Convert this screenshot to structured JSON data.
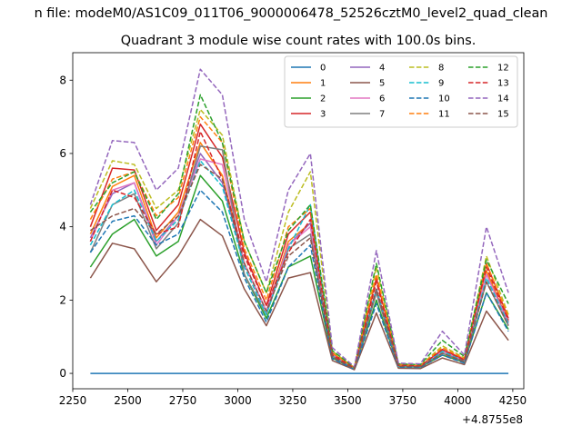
{
  "suptitle": "n file: modeM0/AS1C09_011T06_9000006478_52526cztM0_level2_quad_clean",
  "chart_data": {
    "type": "line",
    "title": "Quadrant 3 module wise count rates with 100.0s bins.",
    "xlabel": "",
    "ylabel": "",
    "x_offset_label": "+4.8755e8",
    "xlim": [
      2250,
      4300
    ],
    "ylim": [
      -0.42,
      8.75
    ],
    "xticks": [
      2250,
      2500,
      2750,
      3000,
      3250,
      3500,
      3750,
      4000,
      4250
    ],
    "yticks": [
      0,
      2,
      4,
      6,
      8
    ],
    "grid": false,
    "legend_placement": "top-right",
    "legend_columns": 4,
    "x": [
      2330,
      2430,
      2530,
      2630,
      2730,
      2830,
      2930,
      3030,
      3130,
      3230,
      3330,
      3430,
      3530,
      3630,
      3730,
      3830,
      3930,
      4030,
      4130,
      4230
    ],
    "series": [
      {
        "name": "0",
        "color": "#1f77b4",
        "dash": false,
        "values": [
          0,
          0,
          0,
          0,
          0,
          0,
          0,
          0,
          0,
          0,
          0,
          0,
          0,
          0,
          0,
          0,
          0,
          0,
          0,
          0
        ]
      },
      {
        "name": "1",
        "color": "#ff7f0e",
        "dash": false,
        "values": [
          3.8,
          5.1,
          5.4,
          3.7,
          4.4,
          6.3,
          5.4,
          3.0,
          1.7,
          3.6,
          4.1,
          0.5,
          0.14,
          2.3,
          0.22,
          0.2,
          0.6,
          0.35,
          2.8,
          1.4
        ]
      },
      {
        "name": "2",
        "color": "#2ca02c",
        "dash": false,
        "values": [
          2.9,
          3.8,
          4.2,
          3.2,
          3.6,
          5.4,
          4.7,
          2.7,
          1.5,
          2.9,
          3.2,
          0.42,
          0.12,
          2.0,
          0.18,
          0.17,
          0.5,
          0.3,
          2.2,
          1.2
        ]
      },
      {
        "name": "3",
        "color": "#d62728",
        "dash": false,
        "values": [
          4.0,
          5.6,
          5.55,
          3.9,
          4.6,
          6.8,
          5.9,
          3.3,
          1.85,
          3.8,
          4.4,
          0.55,
          0.14,
          2.6,
          0.22,
          0.2,
          0.65,
          0.38,
          3.0,
          1.5
        ]
      },
      {
        "name": "4",
        "color": "#9467bd",
        "dash": false,
        "values": [
          3.7,
          4.9,
          5.2,
          3.6,
          4.3,
          6.0,
          5.2,
          3.0,
          1.7,
          3.5,
          4.1,
          0.5,
          0.13,
          2.3,
          0.2,
          0.19,
          0.6,
          0.34,
          2.7,
          1.4
        ]
      },
      {
        "name": "5",
        "color": "#8c564b",
        "dash": false,
        "values": [
          2.6,
          3.55,
          3.4,
          2.5,
          3.2,
          4.2,
          3.75,
          2.3,
          1.3,
          2.6,
          2.75,
          0.35,
          0.1,
          1.65,
          0.14,
          0.13,
          0.42,
          0.24,
          1.7,
          0.9
        ]
      },
      {
        "name": "6",
        "color": "#e377c2",
        "dash": false,
        "values": [
          3.6,
          5.0,
          5.2,
          3.5,
          4.3,
          5.85,
          5.7,
          3.0,
          1.7,
          3.5,
          4.0,
          0.5,
          0.13,
          2.2,
          0.2,
          0.18,
          0.6,
          0.34,
          2.7,
          1.35
        ]
      },
      {
        "name": "7",
        "color": "#7f7f7f",
        "dash": false,
        "values": [
          3.3,
          4.6,
          4.9,
          3.4,
          4.1,
          6.2,
          6.1,
          2.7,
          1.6,
          3.4,
          3.8,
          0.46,
          0.12,
          2.2,
          0.19,
          0.18,
          0.55,
          0.32,
          2.5,
          1.3
        ]
      },
      {
        "name": "8",
        "color": "#bcbd22",
        "dash": true,
        "values": [
          4.5,
          5.8,
          5.7,
          4.5,
          5.0,
          7.2,
          6.5,
          3.6,
          2.2,
          4.4,
          5.5,
          0.6,
          0.16,
          2.9,
          0.25,
          0.22,
          0.75,
          0.42,
          3.2,
          1.6
        ]
      },
      {
        "name": "9",
        "color": "#17becf",
        "dash": true,
        "values": [
          3.5,
          4.6,
          5.0,
          3.6,
          4.2,
          5.8,
          5.1,
          2.9,
          1.6,
          3.4,
          4.6,
          0.48,
          0.13,
          2.3,
          0.2,
          0.18,
          0.6,
          0.33,
          2.6,
          1.35
        ]
      },
      {
        "name": "10",
        "color": "#1f77b4",
        "dash": true,
        "values": [
          3.3,
          4.15,
          4.3,
          3.5,
          3.8,
          5.0,
          4.4,
          2.6,
          1.4,
          2.9,
          3.5,
          0.4,
          0.11,
          1.9,
          0.17,
          0.16,
          0.5,
          0.28,
          2.2,
          1.15
        ]
      },
      {
        "name": "11",
        "color": "#ff7f0e",
        "dash": true,
        "values": [
          4.2,
          5.3,
          5.5,
          4.3,
          4.8,
          7.0,
          6.3,
          3.4,
          2.0,
          4.0,
          4.5,
          0.55,
          0.15,
          2.7,
          0.23,
          0.21,
          0.7,
          0.4,
          3.0,
          1.55
        ]
      },
      {
        "name": "12",
        "color": "#2ca02c",
        "dash": true,
        "values": [
          4.4,
          5.2,
          5.5,
          4.2,
          4.9,
          7.6,
          6.3,
          3.6,
          2.2,
          3.9,
          4.6,
          0.62,
          0.16,
          3.0,
          0.26,
          0.24,
          0.9,
          0.46,
          3.1,
          1.9
        ]
      },
      {
        "name": "13",
        "color": "#d62728",
        "dash": true,
        "values": [
          3.6,
          5.0,
          4.8,
          3.8,
          4.0,
          6.6,
          5.3,
          3.2,
          1.85,
          3.3,
          4.2,
          0.5,
          0.14,
          2.5,
          0.22,
          0.2,
          0.65,
          0.36,
          2.9,
          1.45
        ]
      },
      {
        "name": "14",
        "color": "#9467bd",
        "dash": true,
        "values": [
          4.6,
          6.35,
          6.3,
          5.0,
          5.6,
          8.3,
          7.6,
          4.2,
          2.5,
          5.0,
          6.0,
          0.7,
          0.18,
          3.35,
          0.28,
          0.26,
          1.15,
          0.5,
          4.0,
          2.2
        ]
      },
      {
        "name": "15",
        "color": "#8c564b",
        "dash": true,
        "values": [
          3.9,
          4.3,
          4.5,
          3.8,
          4.3,
          5.7,
          5.3,
          3.0,
          1.7,
          3.2,
          3.7,
          0.45,
          0.12,
          2.3,
          0.19,
          0.18,
          0.55,
          0.32,
          2.5,
          1.3
        ]
      }
    ]
  }
}
